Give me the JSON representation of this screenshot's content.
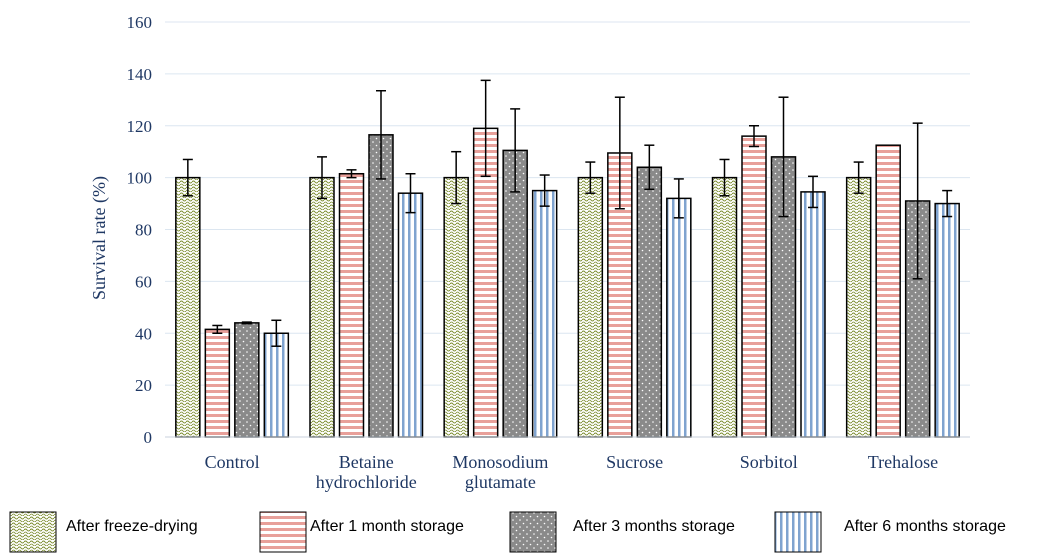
{
  "chart_data": {
    "type": "bar",
    "title": "",
    "xlabel": "",
    "ylabel": "Survival rate (%)",
    "ylim": [
      0,
      160
    ],
    "yticks": [
      0,
      20,
      40,
      60,
      80,
      100,
      120,
      140,
      160
    ],
    "grid": true,
    "legend_position": "bottom",
    "categories": [
      [
        "Control"
      ],
      [
        "Betaine",
        "hydrochloride"
      ],
      [
        "Monosodium",
        "glutamate"
      ],
      [
        "Sucrose"
      ],
      [
        "Sorbitol"
      ],
      [
        "Trehalose"
      ]
    ],
    "series": [
      {
        "name": "After freeze-drying",
        "pattern": "wave-green",
        "values": [
          100,
          100,
          100,
          100,
          100,
          100
        ],
        "errors": [
          7,
          8,
          10,
          6,
          7,
          6
        ]
      },
      {
        "name": "After 1 month storage",
        "pattern": "horizontal-stripes-red",
        "values": [
          41.5,
          101.5,
          119,
          109.5,
          116,
          112.5
        ],
        "errors": [
          1.5,
          1.5,
          18.5,
          21.5,
          4,
          0
        ]
      },
      {
        "name": "After 3 months storage",
        "pattern": "dots-gray",
        "values": [
          44,
          116.5,
          110.5,
          104,
          108,
          91
        ],
        "errors": [
          0.3,
          17,
          16,
          8.5,
          23,
          30
        ]
      },
      {
        "name": "After 6 months storage",
        "pattern": "vertical-stripes-blue",
        "values": [
          40,
          94,
          95,
          92,
          94.5,
          90
        ],
        "errors": [
          5,
          7.5,
          6,
          7.5,
          6,
          5
        ]
      }
    ],
    "colors": {
      "axis_text": "#1f3864",
      "grid": "#dce6f0",
      "wave": "#7a8b2b",
      "stripe_red": "#e8a09a",
      "dots_bg": "#8a8a8a",
      "stripe_blue": "#7fa3cf"
    }
  }
}
